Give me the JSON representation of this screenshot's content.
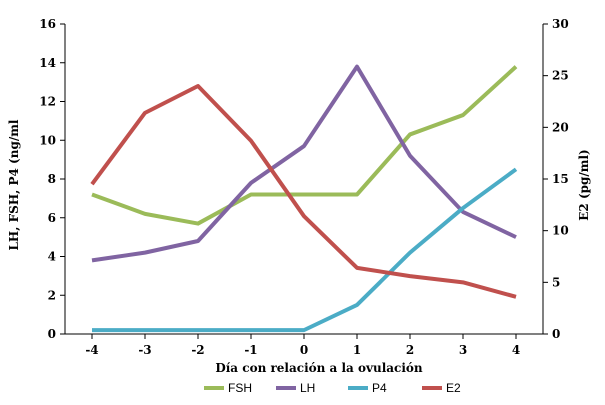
{
  "chart_data": {
    "type": "line",
    "x": [
      -4,
      -3,
      -2,
      -1,
      0,
      1,
      2,
      3,
      4
    ],
    "xlabel": "Día con relación a la ovulación",
    "ylabel_left": "LH, FSH, P4 (ng/ml",
    "ylabel_right": "E2 (pg/ml)",
    "ylim_left": [
      0,
      16
    ],
    "ylim_right": [
      0,
      30
    ],
    "yticks_left": [
      0,
      2,
      4,
      6,
      8,
      10,
      12,
      14,
      16
    ],
    "yticks_right": [
      0,
      5,
      10,
      15,
      20,
      25,
      30
    ],
    "grid": false,
    "legend_position": "bottom",
    "series": [
      {
        "name": "FSH",
        "axis": "left",
        "color": "#9bbb59",
        "values": [
          7.2,
          6.2,
          5.7,
          7.2,
          7.2,
          7.2,
          10.3,
          11.3,
          13.8
        ]
      },
      {
        "name": "LH",
        "axis": "left",
        "color": "#8064a2",
        "values": [
          3.8,
          4.2,
          4.8,
          7.8,
          9.7,
          13.8,
          9.2,
          6.3,
          5.0
        ]
      },
      {
        "name": "P4",
        "axis": "left",
        "color": "#4bacc6",
        "values": [
          0.2,
          0.2,
          0.2,
          0.2,
          0.2,
          1.5,
          4.2,
          6.5,
          8.5
        ]
      },
      {
        "name": "E2",
        "axis": "right",
        "color": "#c0504d",
        "values": [
          14.5,
          21.4,
          24.0,
          18.7,
          11.4,
          6.4,
          5.6,
          5.0,
          3.6
        ]
      }
    ]
  }
}
